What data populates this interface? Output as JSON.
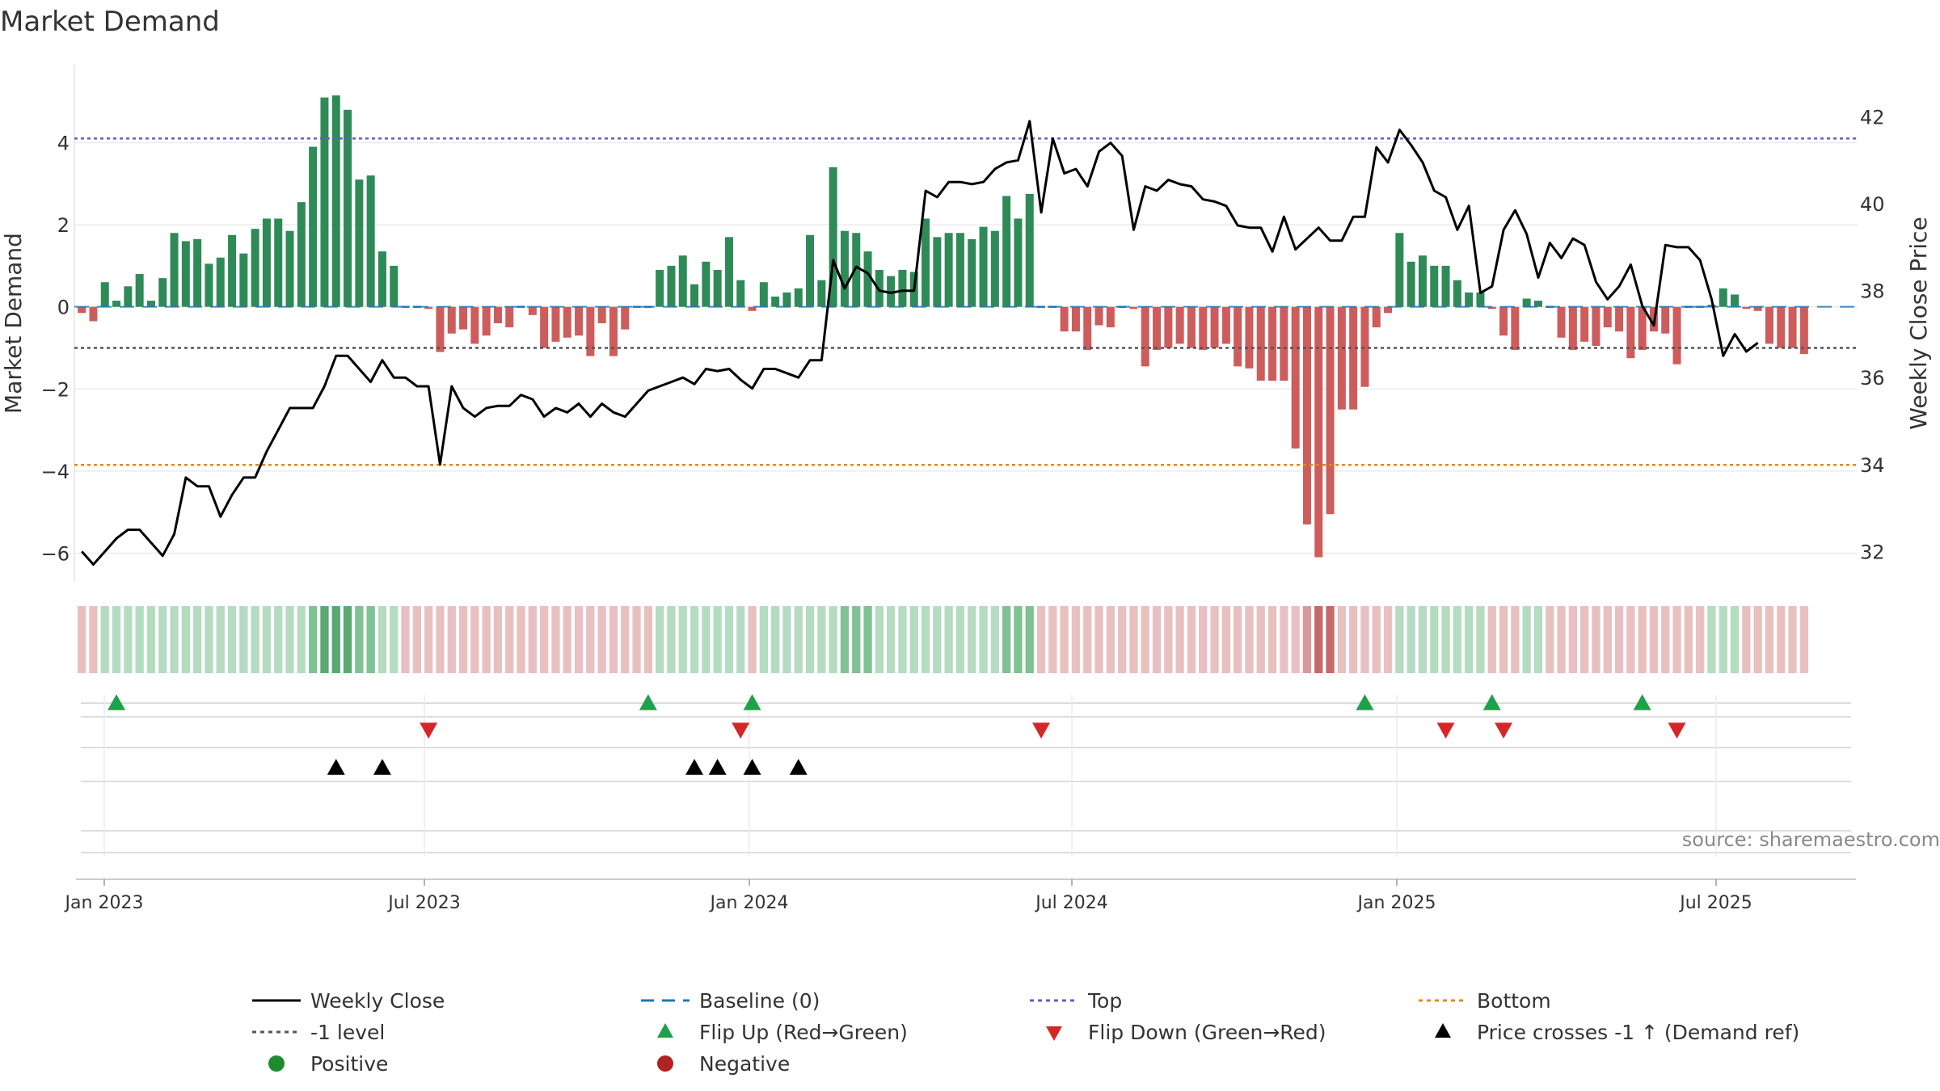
{
  "chart_data": {
    "type": "bar",
    "title": "Market Demand",
    "source": "source: sharemaestro.com",
    "ylabel_left": "Market Demand",
    "ylabel_right": "Weekly Close Price",
    "ylim_left": [
      -6.7,
      5.9
    ],
    "ylim_right": [
      31.3,
      43.2
    ],
    "yticks_left": [
      4,
      2,
      0,
      -2,
      -4,
      -6
    ],
    "yticks_right": [
      42,
      40,
      38,
      36,
      34,
      32
    ],
    "x_ticks": [
      "Jan 2023",
      "Jul 2023",
      "Jan 2024",
      "Jul 2024",
      "Jan 2025",
      "Jul 2025"
    ],
    "levels": {
      "top": 4.1,
      "minus1": -1.0,
      "bottom": -3.85,
      "baseline": 0
    },
    "colors": {
      "positive": "#2e8b57",
      "negative": "#cd5c5c",
      "close": "#000000",
      "top": "#6a5acd",
      "bottom": "#e08a1e",
      "baseline": "#1f77b4",
      "minus1": "#555555",
      "flip_up": "#1fa14a",
      "flip_down": "#d62728",
      "cross": "#000000",
      "positive_dot": "#1f8b2e",
      "negative_dot": "#b22222"
    },
    "demand": [
      -0.15,
      -0.35,
      0.6,
      0.15,
      0.5,
      0.8,
      0.15,
      0.7,
      1.8,
      1.6,
      1.65,
      1.05,
      1.2,
      1.75,
      1.3,
      1.9,
      2.15,
      2.15,
      1.85,
      2.55,
      3.9,
      5.1,
      5.15,
      4.8,
      3.1,
      3.2,
      1.35,
      1.0,
      0,
      0,
      -0.05,
      -1.1,
      -0.65,
      -0.55,
      -0.9,
      -0.7,
      -0.4,
      -0.5,
      0,
      -0.2,
      -1.0,
      -0.85,
      -0.75,
      -0.7,
      -1.2,
      -0.4,
      -1.2,
      -0.55,
      0,
      0,
      0.9,
      1.0,
      1.25,
      0.55,
      1.1,
      0.9,
      1.7,
      0.65,
      -0.1,
      0.6,
      0.25,
      0.35,
      0.45,
      1.75,
      0.65,
      3.4,
      1.85,
      1.8,
      1.35,
      0.9,
      0.75,
      0.9,
      0.85,
      2.15,
      1.7,
      1.8,
      1.8,
      1.65,
      1.95,
      1.85,
      2.7,
      2.15,
      2.75,
      0,
      0,
      -0.6,
      -0.6,
      -1.05,
      -0.45,
      -0.5,
      0,
      -0.05,
      -1.45,
      -1.05,
      -1.0,
      -0.9,
      -1.0,
      -1.05,
      -1.0,
      -0.9,
      -1.45,
      -1.5,
      -1.8,
      -1.8,
      -1.8,
      -3.45,
      -5.3,
      -6.1,
      -5.05,
      -2.5,
      -2.5,
      -1.95,
      -0.5,
      -0.15,
      1.8,
      1.1,
      1.25,
      1.0,
      1.0,
      0.65,
      0.35,
      0.35,
      -0.05,
      -0.7,
      -1.05,
      0.2,
      0.15,
      0,
      -0.75,
      -1.05,
      -0.85,
      -0.95,
      -0.5,
      -0.6,
      -1.25,
      -1.05,
      -0.6,
      -0.65,
      -1.4,
      0,
      0,
      0.05,
      0.45,
      0.3,
      -0.05,
      -0.1,
      -0.9,
      -1.0,
      -1.0,
      -1.15
    ],
    "close": [
      32.0,
      31.7,
      32.0,
      32.3,
      32.5,
      32.5,
      32.2,
      31.9,
      32.4,
      33.7,
      33.5,
      33.5,
      32.8,
      33.3,
      33.7,
      33.7,
      34.3,
      34.8,
      35.3,
      35.3,
      35.3,
      35.8,
      36.5,
      36.5,
      36.2,
      35.9,
      36.4,
      36.0,
      36.0,
      35.8,
      35.8,
      34.0,
      35.8,
      35.3,
      35.1,
      35.3,
      35.35,
      35.35,
      35.6,
      35.5,
      35.1,
      35.3,
      35.2,
      35.4,
      35.1,
      35.4,
      35.2,
      35.1,
      35.4,
      35.7,
      35.8,
      35.9,
      36.0,
      35.85,
      36.2,
      36.15,
      36.2,
      35.95,
      35.75,
      36.2,
      36.2,
      36.1,
      36.0,
      36.4,
      36.4,
      38.7,
      38.05,
      38.55,
      38.4,
      38.0,
      37.95,
      38.0,
      38.0,
      40.3,
      40.15,
      40.5,
      40.5,
      40.45,
      40.5,
      40.8,
      40.95,
      41.0,
      41.9,
      39.8,
      41.5,
      40.7,
      40.8,
      40.4,
      41.2,
      41.4,
      41.1,
      39.4,
      40.4,
      40.3,
      40.55,
      40.45,
      40.4,
      40.1,
      40.05,
      39.95,
      39.5,
      39.45,
      39.45,
      38.9,
      39.7,
      38.95,
      39.2,
      39.45,
      39.15,
      39.15,
      39.7,
      39.7,
      41.3,
      40.95,
      41.7,
      41.35,
      40.95,
      40.3,
      40.15,
      39.4,
      39.95,
      37.95,
      38.1,
      39.4,
      39.85,
      39.3,
      38.3,
      39.1,
      38.75,
      39.2,
      39.05,
      38.2,
      37.8,
      38.1,
      38.6,
      37.65,
      37.2,
      39.05,
      39.0,
      39.0,
      38.7,
      37.8,
      36.5,
      37.0,
      36.6,
      36.8
    ],
    "shade": [
      1,
      1,
      1,
      1,
      1,
      1,
      1,
      1,
      1,
      1,
      1,
      1,
      1,
      1,
      1,
      1,
      1,
      1,
      1,
      1,
      2,
      3,
      3,
      3,
      2,
      2,
      1,
      1,
      1,
      1,
      1,
      1,
      1,
      1,
      1,
      1,
      1,
      1,
      1,
      1,
      1,
      1,
      1,
      1,
      1,
      1,
      1,
      1,
      1,
      1,
      1,
      1,
      1,
      1,
      1,
      1,
      1,
      1,
      1,
      1,
      1,
      1,
      1,
      1,
      1,
      1,
      2,
      2,
      2,
      1,
      1,
      1,
      1,
      1,
      1,
      1,
      1,
      1,
      1,
      1,
      2,
      2,
      2,
      1,
      1,
      1,
      1,
      1,
      1,
      1,
      1,
      1,
      1,
      1,
      1,
      1,
      1,
      1,
      1,
      1,
      1,
      1,
      1,
      1,
      1,
      1,
      2,
      3,
      3,
      1,
      1,
      1,
      1,
      1,
      1,
      1,
      1,
      1,
      1,
      1,
      1,
      1,
      1,
      1,
      1,
      1,
      1,
      1,
      1,
      1,
      1,
      1,
      1,
      1,
      1,
      1,
      1,
      1,
      1,
      1,
      1,
      1,
      1,
      1,
      1,
      1,
      1,
      1,
      1,
      1
    ],
    "flip_up": [
      3,
      49,
      58,
      111,
      122,
      135
    ],
    "flip_down": [
      30,
      57,
      83,
      118,
      123,
      138
    ],
    "price_cross": [
      22,
      26,
      53,
      55,
      58,
      62
    ],
    "legend": [
      {
        "label": "Weekly Close",
        "key": "close"
      },
      {
        "label": "Baseline (0)",
        "key": "baseline"
      },
      {
        "label": "Top",
        "key": "top"
      },
      {
        "label": "Bottom",
        "key": "bottom"
      },
      {
        "label": "-1 level",
        "key": "minus1"
      },
      {
        "label": "Flip Up (Red→Green)",
        "key": "flip_up"
      },
      {
        "label": "Flip Down (Green→Red)",
        "key": "flip_down"
      },
      {
        "label": "Price crosses -1 ↑ (Demand ref)",
        "key": "cross"
      },
      {
        "label": "Positive",
        "key": "positive_dot"
      },
      {
        "label": "Negative",
        "key": "negative_dot"
      }
    ]
  }
}
